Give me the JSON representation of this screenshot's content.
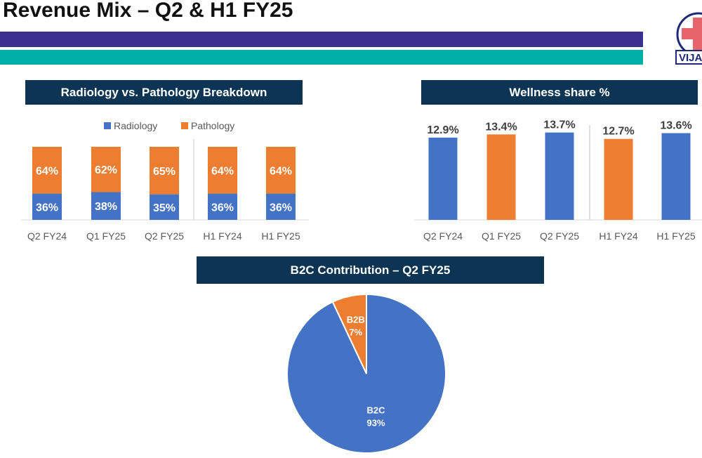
{
  "page": {
    "title": "Revenue Mix – Q2 & H1 FY25"
  },
  "logo": {
    "text": "VIJA"
  },
  "colors": {
    "blue": "#4472c4",
    "orange": "#ed7d31",
    "header_bg": "#0d3553",
    "purple_band": "#3b2f8f",
    "teal_band": "#00b0a8"
  },
  "chart_data": [
    {
      "type": "bar",
      "stacked": true,
      "title": "Radiology vs. Pathology Breakdown",
      "categories": [
        "Q2 FY24",
        "Q1 FY25",
        "Q2 FY25",
        "H1 FY24",
        "H1 FY25"
      ],
      "series": [
        {
          "name": "Radiology",
          "color": "#4472c4",
          "values": [
            36,
            38,
            35,
            36,
            36
          ]
        },
        {
          "name": "Pathology",
          "color": "#ed7d31",
          "values": [
            64,
            62,
            65,
            64,
            64
          ]
        }
      ],
      "value_suffix": "%",
      "legend": "top",
      "ylim": [
        0,
        100
      ],
      "grid": false
    },
    {
      "type": "bar",
      "title": "Wellness share %",
      "categories": [
        "Q2 FY24",
        "Q1 FY25",
        "Q2 FY25",
        "H1 FY24",
        "H1 FY25"
      ],
      "values": [
        12.9,
        13.4,
        13.7,
        12.7,
        13.6
      ],
      "bar_colors": [
        "#4472c4",
        "#ed7d31",
        "#4472c4",
        "#ed7d31",
        "#4472c4"
      ],
      "value_suffix": "%",
      "ylim": [
        0,
        15.2
      ],
      "grid": false
    },
    {
      "type": "pie",
      "title": "B2C Contribution – Q2 FY25",
      "slices": [
        {
          "label": "B2B",
          "value": 7,
          "color": "#ed7d31"
        },
        {
          "label": "B2C",
          "value": 93,
          "color": "#4472c4"
        }
      ],
      "value_suffix": "%"
    }
  ]
}
